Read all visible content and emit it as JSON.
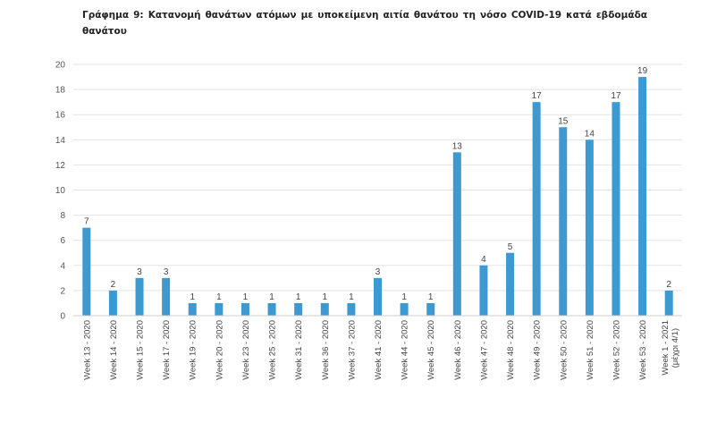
{
  "chart_data": {
    "type": "bar",
    "title": "Γράφημα 9: Κατανομή θανάτων ατόμων με υποκείμενη αιτία θανάτου τη νόσο COVID-19 κατά εβδομάδα θανάτου",
    "xlabel": "",
    "ylabel": "",
    "ylim": [
      0,
      20
    ],
    "yticks": [
      0,
      2,
      4,
      6,
      8,
      10,
      12,
      14,
      16,
      18,
      20
    ],
    "grid": true,
    "legend": "none",
    "bar_color": "#3d9ad1",
    "categories": [
      "Week 13 - 2020",
      "Week 14 - 2020",
      "Week 15 - 2020",
      "Week 17 - 2020",
      "Week 19 - 2020",
      "Week 20 - 2020",
      "Week 23 - 2020",
      "Week 25 - 2020",
      "Week 31 - 2020",
      "Week 36 - 2020",
      "Week 37 - 2020",
      "Week 41 - 2020",
      "Week 44 - 2020",
      "Week 45 - 2020",
      "Week 46 - 2020",
      "Week 47 - 2020",
      "Week 48 - 2020",
      "Week 49 - 2020",
      "Week 50 - 2020",
      "Week 51 - 2020",
      "Week 52 - 2020",
      "Week 53 - 2020",
      "Week 1 - 2021 (μέχρι 4/1)"
    ],
    "values": [
      7,
      2,
      3,
      3,
      1,
      1,
      1,
      1,
      1,
      1,
      1,
      3,
      1,
      1,
      13,
      4,
      5,
      17,
      15,
      14,
      17,
      19,
      2
    ]
  }
}
